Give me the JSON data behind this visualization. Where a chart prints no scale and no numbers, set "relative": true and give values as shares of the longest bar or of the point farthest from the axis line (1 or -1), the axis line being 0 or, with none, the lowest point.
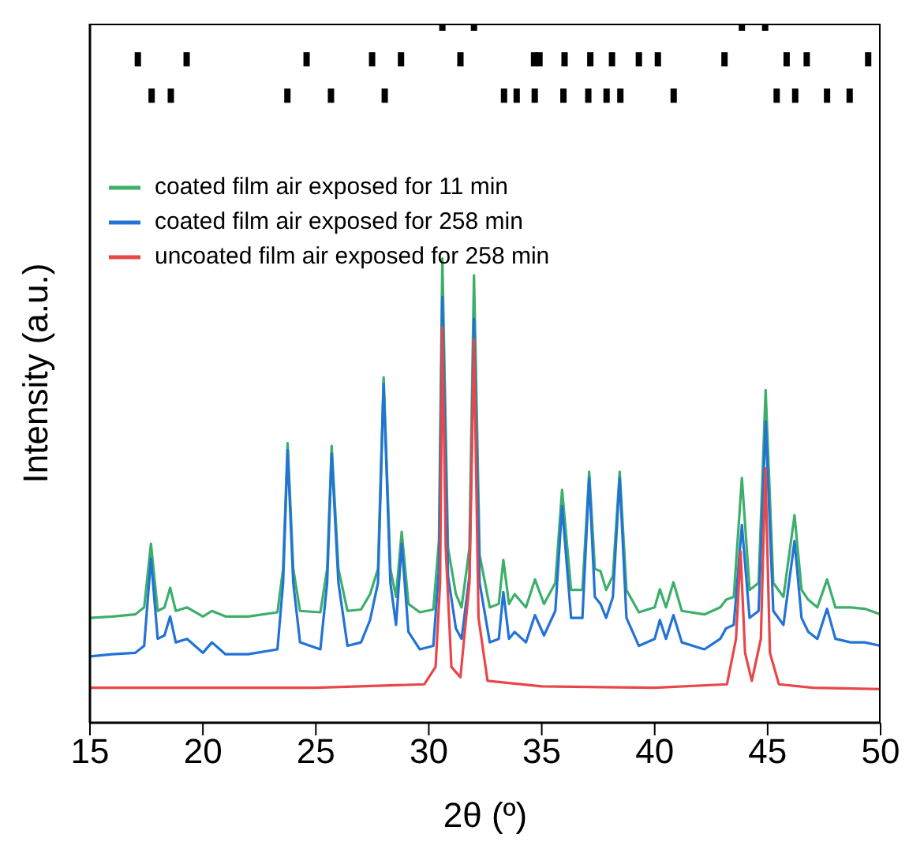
{
  "chart_data": {
    "type": "line",
    "relative": true,
    "xlabel": "2θ (º)",
    "ylabel": "Intensity (a.u.)",
    "xlim": [
      15,
      50
    ],
    "xticks": [
      15,
      20,
      25,
      30,
      35,
      40,
      45,
      50
    ],
    "legend": "top left",
    "grid": false,
    "line_style": "solid",
    "tick_labels": "x",
    "series": [
      {
        "name": "coated film air exposed for 11 min",
        "color": "#3daf6a",
        "x": [
          15,
          16,
          17,
          17.4,
          17.7,
          18.0,
          18.3,
          18.55,
          18.8,
          19.3,
          20,
          20.4,
          21,
          22,
          23.3,
          23.55,
          23.75,
          24.0,
          24.3,
          25.2,
          25.5,
          25.7,
          26.0,
          26.4,
          27.0,
          27.4,
          27.75,
          28.0,
          28.3,
          28.55,
          28.8,
          29.1,
          29.6,
          30.2,
          30.45,
          30.6,
          30.85,
          31.2,
          31.45,
          31.8,
          32.0,
          32.25,
          32.7,
          33.1,
          33.3,
          33.55,
          33.8,
          34.3,
          34.7,
          35.1,
          35.6,
          35.9,
          36.3,
          36.8,
          37.1,
          37.35,
          37.6,
          37.85,
          38.15,
          38.45,
          38.75,
          39.3,
          40.0,
          40.23,
          40.5,
          40.83,
          41.2,
          42.2,
          42.9,
          43.16,
          43.5,
          43.86,
          44.2,
          44.6,
          44.91,
          45.25,
          45.7,
          46.19,
          46.5,
          46.8,
          47.2,
          47.63,
          48.0,
          48.68,
          49.3,
          50
        ],
        "values": [
          0.15,
          0.152,
          0.155,
          0.165,
          0.256,
          0.16,
          0.165,
          0.193,
          0.16,
          0.165,
          0.152,
          0.16,
          0.152,
          0.152,
          0.158,
          0.22,
          0.4,
          0.22,
          0.16,
          0.158,
          0.22,
          0.396,
          0.22,
          0.16,
          0.162,
          0.184,
          0.22,
          0.494,
          0.22,
          0.18,
          0.273,
          0.17,
          0.158,
          0.162,
          0.26,
          0.664,
          0.25,
          0.184,
          0.165,
          0.25,
          0.64,
          0.24,
          0.165,
          0.17,
          0.233,
          0.17,
          0.184,
          0.165,
          0.205,
          0.17,
          0.2,
          0.333,
          0.19,
          0.19,
          0.359,
          0.22,
          0.217,
          0.19,
          0.21,
          0.359,
          0.19,
          0.158,
          0.165,
          0.191,
          0.165,
          0.201,
          0.16,
          0.155,
          0.165,
          0.176,
          0.18,
          0.35,
          0.19,
          0.2,
          0.476,
          0.2,
          0.18,
          0.297,
          0.19,
          0.176,
          0.165,
          0.205,
          0.165,
          0.165,
          0.163,
          0.155
        ]
      },
      {
        "name": "coated film air exposed for 258 min",
        "color": "#2373d6",
        "x": [
          15,
          16,
          17,
          17.4,
          17.7,
          18.0,
          18.3,
          18.55,
          18.8,
          19.3,
          20,
          20.4,
          21,
          22,
          23.3,
          23.55,
          23.75,
          24.0,
          24.3,
          25.2,
          25.5,
          25.7,
          26.0,
          26.4,
          27.0,
          27.4,
          27.75,
          28.0,
          28.3,
          28.55,
          28.8,
          29.1,
          29.6,
          30.2,
          30.45,
          30.6,
          30.85,
          31.2,
          31.45,
          31.8,
          32.0,
          32.25,
          32.7,
          33.1,
          33.3,
          33.55,
          33.8,
          34.3,
          34.7,
          35.1,
          35.6,
          35.9,
          36.3,
          36.8,
          37.1,
          37.35,
          37.6,
          37.85,
          38.15,
          38.45,
          38.75,
          39.3,
          40.0,
          40.23,
          40.5,
          40.83,
          41.2,
          42.2,
          42.9,
          43.16,
          43.5,
          43.86,
          44.2,
          44.6,
          44.91,
          45.25,
          45.7,
          46.19,
          46.5,
          46.8,
          47.2,
          47.63,
          48.0,
          48.68,
          49.3,
          50
        ],
        "values": [
          0.095,
          0.098,
          0.1,
          0.11,
          0.235,
          0.12,
          0.125,
          0.152,
          0.115,
          0.12,
          0.1,
          0.115,
          0.098,
          0.098,
          0.105,
          0.2,
          0.39,
          0.2,
          0.115,
          0.105,
          0.2,
          0.385,
          0.2,
          0.11,
          0.115,
          0.147,
          0.2,
          0.485,
          0.2,
          0.14,
          0.256,
          0.13,
          0.105,
          0.11,
          0.22,
          0.609,
          0.21,
          0.135,
          0.12,
          0.21,
          0.578,
          0.2,
          0.115,
          0.12,
          0.187,
          0.12,
          0.13,
          0.115,
          0.154,
          0.125,
          0.16,
          0.31,
          0.15,
          0.15,
          0.35,
          0.18,
          0.17,
          0.15,
          0.18,
          0.35,
          0.15,
          0.11,
          0.12,
          0.147,
          0.12,
          0.154,
          0.115,
          0.105,
          0.12,
          0.135,
          0.14,
          0.283,
          0.15,
          0.16,
          0.431,
          0.16,
          0.14,
          0.26,
          0.15,
          0.13,
          0.12,
          0.163,
          0.12,
          0.115,
          0.115,
          0.11
        ]
      },
      {
        "name": "uncoated film air exposed for 258 min",
        "color": "#e8474a",
        "x": [
          15,
          20,
          25,
          29.8,
          30.3,
          30.5,
          30.6,
          30.75,
          31.0,
          31.4,
          31.8,
          32.0,
          32.2,
          32.6,
          35,
          40,
          43.2,
          43.6,
          43.8,
          44.0,
          44.3,
          44.7,
          44.9,
          45.1,
          45.5,
          47,
          50
        ],
        "values": [
          0.05,
          0.05,
          0.05,
          0.055,
          0.08,
          0.2,
          0.566,
          0.25,
          0.08,
          0.065,
          0.2,
          0.548,
          0.15,
          0.06,
          0.052,
          0.05,
          0.055,
          0.12,
          0.245,
          0.1,
          0.06,
          0.12,
          0.364,
          0.1,
          0.055,
          0.05,
          0.048
        ]
      },
      {
        "type": "scatter",
        "marker": "square",
        "color": "#000000",
        "x": [
          30.6,
          32.0,
          43.86,
          44.89
        ],
        "values": [
          1,
          1,
          1,
          1
        ]
      },
      {
        "type": "scatter",
        "marker": "square",
        "color": "#000000",
        "x": [
          17.12,
          19.28,
          24.59,
          27.49,
          28.77,
          31.4,
          34.66,
          34.9,
          36.01,
          37.15,
          38.11,
          39.3,
          40.14,
          43.09,
          45.84,
          46.73,
          49.45
        ],
        "values": [
          0.949,
          0.949,
          0.949,
          0.949,
          0.949,
          0.949,
          0.949,
          0.949,
          0.949,
          0.949,
          0.949,
          0.949,
          0.949,
          0.949,
          0.949,
          0.949,
          0.949
        ]
      },
      {
        "type": "scatter",
        "marker": "square",
        "color": "#000000",
        "x": [
          17.73,
          18.58,
          23.74,
          25.67,
          28.05,
          33.33,
          33.89,
          34.69,
          35.96,
          37.06,
          37.87,
          38.48,
          40.84,
          45.4,
          46.22,
          47.63,
          48.63
        ],
        "values": [
          0.897,
          0.897,
          0.897,
          0.897,
          0.897,
          0.897,
          0.897,
          0.897,
          0.897,
          0.897,
          0.897,
          0.897,
          0.897,
          0.897,
          0.897,
          0.897,
          0.897
        ]
      }
    ]
  }
}
